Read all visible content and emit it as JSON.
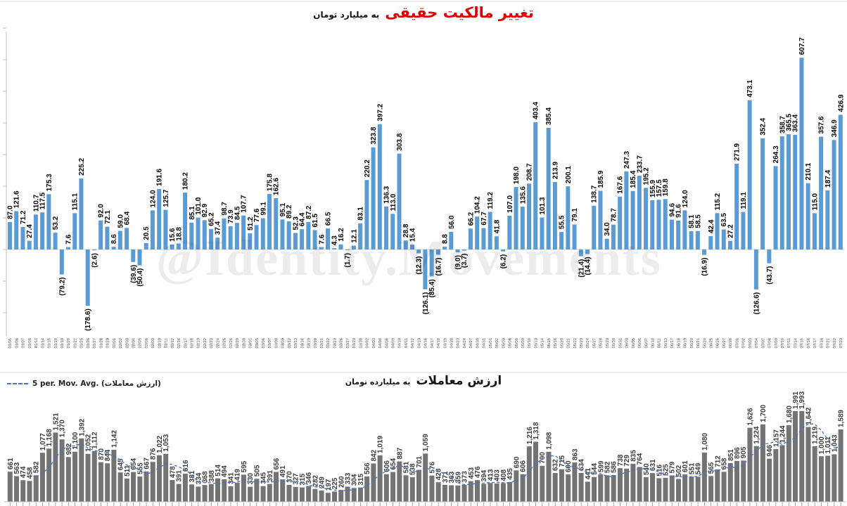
{
  "watermark": "@Identity.Movements",
  "chart_data": [
    {
      "type": "bar",
      "title": "تغییر مالکیت حقیقی",
      "subtitle": "به میلیارد تومان",
      "bar_color": "#5B9BD5",
      "title_color": "#e00000",
      "ylim": [
        -200,
        650
      ],
      "grid": false,
      "negative_label_style": "parentheses",
      "categories": [
        "01/05",
        "01/06",
        "01/07",
        "01/08",
        "01/11",
        "01/14",
        "01/15",
        "01/18",
        "01/19",
        "01/20",
        "01/21",
        "01/25",
        "01/26",
        "01/27",
        "01/28",
        "01/29",
        "02/01",
        "02/02",
        "02/03",
        "02/04",
        "02/05",
        "02/08",
        "02/09",
        "02/10",
        "02/11",
        "02/12",
        "02/16",
        "02/17",
        "02/18",
        "02/19",
        "02/22",
        "02/23",
        "02/24",
        "02/25",
        "02/26",
        "02/29",
        "02/30",
        "03/01",
        "03/05",
        "03/06",
        "03/07",
        "03/08",
        "03/09",
        "03/12",
        "03/13",
        "03/16",
        "03/19",
        "03/20",
        "03/21",
        "03/22",
        "03/23",
        "03/26",
        "03/27",
        "03/29",
        "03/30",
        "04/02",
        "04/03",
        "04/04",
        "04/06",
        "04/09",
        "04/10",
        "04/11",
        "04/12",
        "04/13",
        "04/16",
        "04/17",
        "04/18",
        "04/19",
        "04/20",
        "04/23",
        "04/24",
        "04/27",
        "04/30",
        "04/31",
        "05/01",
        "05/02",
        "05/03",
        "05/06",
        "05/08",
        "05/09",
        "05/10",
        "05/13",
        "05/14",
        "05/15",
        "05/16",
        "05/20",
        "05/21",
        "05/22",
        "05/23",
        "05/24",
        "05/27",
        "05/28",
        "05/29",
        "05/30",
        "05/31",
        "06/03",
        "06/05",
        "06/06",
        "06/07",
        "06/10",
        "06/11",
        "06/13",
        "06/17",
        "06/18",
        "06/19",
        "06/20",
        "06/21",
        "06/24",
        "06/25",
        "06/26",
        "06/27",
        "06/28",
        "07/01",
        "07/02",
        "07/03",
        "07/04",
        "07/07",
        "07/08",
        "07/09",
        "07/10",
        "07/11",
        "07/14",
        "07/15",
        "07/16",
        "07/17",
        "07/18",
        "07/21",
        "07/22",
        "07/23"
      ],
      "values": [
        87.0,
        121.6,
        71.2,
        27.4,
        110.7,
        117.5,
        175.3,
        53.2,
        -79.2,
        7.6,
        115.1,
        225.2,
        -178.6,
        -2.6,
        92.0,
        72.1,
        8.6,
        59.0,
        68.4,
        -39.6,
        -50.4,
        20.5,
        124.0,
        191.6,
        125.7,
        15.6,
        18.8,
        180.2,
        85.1,
        101.0,
        92.9,
        65.2,
        37.4,
        98.7,
        73.9,
        84.5,
        107.7,
        51.2,
        77.6,
        99.1,
        175.8,
        162.6,
        95.1,
        89.2,
        52.3,
        64.4,
        87.2,
        61.5,
        7.6,
        66.5,
        4.3,
        16.2,
        -1.7,
        12.1,
        83.1,
        220.2,
        323.8,
        397.2,
        136.3,
        113.0,
        303.8,
        28.8,
        15.4,
        -12.3,
        -126.1,
        -85.4,
        -16.7,
        8.8,
        56.0,
        -9.0,
        -3.7,
        66.2,
        104.2,
        67.7,
        119.2,
        41.8,
        -6.2,
        107.0,
        198.0,
        135.6,
        208.7,
        403.4,
        101.3,
        385.4,
        213.9,
        55.5,
        200.1,
        79.1,
        -21.4,
        -14.4,
        138.7,
        185.9,
        34.0,
        78.7,
        167.6,
        247.3,
        185.4,
        233.7,
        195.2,
        155.9,
        157.5,
        159.8,
        94.6,
        91.6,
        124.0,
        58.1,
        58.5,
        -16.9,
        42.4,
        115.2,
        63.5,
        27.2,
        271.9,
        119.1,
        473.1,
        -126.6,
        352.4,
        -43.7,
        264.3,
        358.7,
        365.5,
        363.4,
        607.7,
        210.1,
        115.0,
        357.6,
        187.4,
        346.9,
        426.9
      ]
    },
    {
      "type": "bar",
      "title": "ارزش معاملات",
      "subtitle": "به میلیارده تومان",
      "legend": [
        "5 per. Mov. Avg. (ارزش معاملات)"
      ],
      "legend_position": "top-left",
      "bar_color": "#737373",
      "ma_color": "#4472C4",
      "ma_window": 5,
      "ylim": [
        0,
        2000
      ],
      "grid": false,
      "values": [
        661,
        563,
        474,
        458,
        582,
        1077,
        1168,
        1521,
        1370,
        982,
        1100,
        1392,
        1052,
        1112,
        870,
        844,
        1142,
        645,
        511,
        654,
        555,
        667,
        876,
        1022,
        1053,
        478,
        391,
        616,
        381,
        334,
        368,
        388,
        514,
        494,
        341,
        419,
        595,
        330,
        505,
        345,
        391,
        656,
        491,
        370,
        327,
        315,
        346,
        282,
        249,
        197,
        225,
        260,
        333,
        304,
        315,
        556,
        842,
        1019,
        606,
        654,
        887,
        581,
        538,
        701,
        1059,
        576,
        428,
        371,
        363,
        359,
        373,
        453,
        476,
        394,
        413,
        403,
        408,
        435,
        690,
        606,
        1216,
        1318,
        790,
        1098,
        632,
        715,
        600,
        863,
        634,
        441,
        544,
        599,
        582,
        586,
        738,
        729,
        835,
        764,
        540,
        631,
        516,
        525,
        579,
        502,
        601,
        551,
        549,
        1080,
        565,
        712,
        658,
        851,
        896,
        905,
        1626,
        1224,
        1700,
        946,
        1157,
        1244,
        1680,
        1991,
        1993,
        1642,
        1219,
        1000,
        1011,
        1043,
        1589
      ]
    }
  ]
}
